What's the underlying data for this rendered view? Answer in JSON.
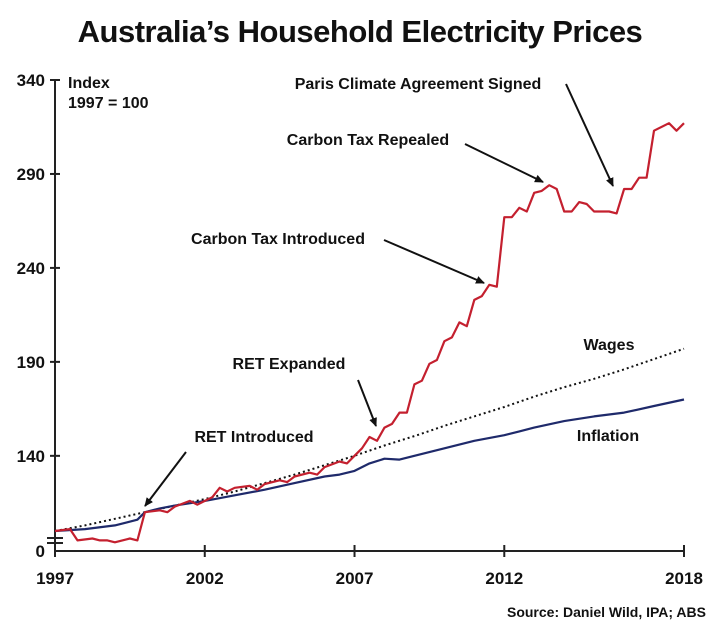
{
  "chart_data": {
    "type": "line",
    "title": "Australia’s Household Electricity Prices",
    "ylabel_lines": [
      "Index",
      "1997 = 100"
    ],
    "xlabel": "",
    "xlim": [
      1997,
      2018
    ],
    "ylim": [
      100,
      340
    ],
    "y_ticks": [
      340,
      290,
      240,
      190,
      140
    ],
    "y_zero_label": "0",
    "y_axis_broken": true,
    "x_ticks": [
      1997,
      2002,
      2007,
      2012,
      2018
    ],
    "grid": false,
    "source": "Source: Daniel Wild, IPA; ABS",
    "series": [
      {
        "name": "Electricity",
        "color": "#c4202f",
        "style": "solid",
        "points": [
          [
            1997.0,
            100
          ],
          [
            1997.5,
            101
          ],
          [
            1997.75,
            95
          ],
          [
            1998.25,
            96
          ],
          [
            1998.5,
            95
          ],
          [
            1998.75,
            95
          ],
          [
            1999.0,
            94
          ],
          [
            1999.5,
            96
          ],
          [
            1999.75,
            95
          ],
          [
            2000.0,
            110
          ],
          [
            2000.5,
            111
          ],
          [
            2000.75,
            110
          ],
          [
            2001.0,
            113
          ],
          [
            2001.5,
            116
          ],
          [
            2001.75,
            114
          ],
          [
            2002.0,
            116
          ],
          [
            2002.25,
            118
          ],
          [
            2002.5,
            123
          ],
          [
            2002.75,
            121
          ],
          [
            2003.0,
            123
          ],
          [
            2003.5,
            124
          ],
          [
            2003.75,
            122
          ],
          [
            2004.0,
            125
          ],
          [
            2004.5,
            127
          ],
          [
            2004.75,
            126
          ],
          [
            2005.0,
            129
          ],
          [
            2005.5,
            131
          ],
          [
            2005.75,
            130
          ],
          [
            2006.0,
            134
          ],
          [
            2006.5,
            137
          ],
          [
            2006.75,
            136
          ],
          [
            2007.0,
            140
          ],
          [
            2007.25,
            144
          ],
          [
            2007.5,
            150
          ],
          [
            2007.75,
            148
          ],
          [
            2008.0,
            155
          ],
          [
            2008.25,
            157
          ],
          [
            2008.5,
            163
          ],
          [
            2008.75,
            163
          ],
          [
            2009.0,
            178
          ],
          [
            2009.25,
            180
          ],
          [
            2009.5,
            189
          ],
          [
            2009.75,
            191
          ],
          [
            2010.0,
            201
          ],
          [
            2010.25,
            203
          ],
          [
            2010.5,
            211
          ],
          [
            2010.75,
            209
          ],
          [
            2011.0,
            223
          ],
          [
            2011.25,
            225
          ],
          [
            2011.5,
            231
          ],
          [
            2011.75,
            230
          ],
          [
            2012.0,
            267
          ],
          [
            2012.25,
            267
          ],
          [
            2012.5,
            272
          ],
          [
            2012.75,
            270
          ],
          [
            2013.0,
            280
          ],
          [
            2013.25,
            281
          ],
          [
            2013.5,
            284
          ],
          [
            2013.75,
            282
          ],
          [
            2014.0,
            270
          ],
          [
            2014.25,
            270
          ],
          [
            2014.5,
            275
          ],
          [
            2014.75,
            274
          ],
          [
            2015.0,
            270
          ],
          [
            2015.5,
            270
          ],
          [
            2015.75,
            269
          ],
          [
            2016.0,
            282
          ],
          [
            2016.25,
            282
          ],
          [
            2016.5,
            288
          ],
          [
            2016.75,
            288
          ],
          [
            2017.0,
            313
          ],
          [
            2017.5,
            317
          ],
          [
            2017.75,
            313
          ],
          [
            2018.0,
            317
          ]
        ]
      },
      {
        "name": "Wages",
        "color": "#111111",
        "style": "dotted",
        "points": [
          [
            1997,
            100
          ],
          [
            1998,
            103
          ],
          [
            1999,
            106.5
          ],
          [
            2000,
            110
          ],
          [
            2001,
            113.5
          ],
          [
            2002,
            117
          ],
          [
            2003,
            121
          ],
          [
            2004,
            125.5
          ],
          [
            2005,
            130
          ],
          [
            2006,
            135
          ],
          [
            2007,
            140
          ],
          [
            2008,
            145.5
          ],
          [
            2009,
            150.5
          ],
          [
            2010,
            156
          ],
          [
            2011,
            161
          ],
          [
            2012,
            166
          ],
          [
            2013,
            171.5
          ],
          [
            2014,
            176.5
          ],
          [
            2015,
            181
          ],
          [
            2016,
            186
          ],
          [
            2017,
            191.5
          ],
          [
            2018,
            197
          ]
        ]
      },
      {
        "name": "Inflation",
        "color": "#1f2a6b",
        "style": "solid",
        "points": [
          [
            1997,
            100
          ],
          [
            1998,
            101
          ],
          [
            1999,
            103
          ],
          [
            1999.75,
            106
          ],
          [
            2000.0,
            110
          ],
          [
            2000.5,
            112
          ],
          [
            2001,
            113.5
          ],
          [
            2002,
            116
          ],
          [
            2003,
            119
          ],
          [
            2004,
            122
          ],
          [
            2005,
            125.5
          ],
          [
            2006,
            129
          ],
          [
            2006.5,
            130
          ],
          [
            2007,
            132
          ],
          [
            2007.5,
            136
          ],
          [
            2008.0,
            138.5
          ],
          [
            2008.5,
            138
          ],
          [
            2009,
            140
          ],
          [
            2010,
            144
          ],
          [
            2011,
            148
          ],
          [
            2012,
            151
          ],
          [
            2012.5,
            153
          ],
          [
            2013,
            155
          ],
          [
            2014,
            158.5
          ],
          [
            2015,
            161
          ],
          [
            2016,
            163
          ],
          [
            2017,
            166.5
          ],
          [
            2018,
            170
          ]
        ]
      }
    ],
    "series_labels": [
      {
        "text": "Wages",
        "series": "Wages"
      },
      {
        "text": "Inflation",
        "series": "Inflation"
      }
    ],
    "annotations": [
      {
        "text": "RET Introduced",
        "target": [
          2000.0,
          110
        ]
      },
      {
        "text": "RET Expanded",
        "target": [
          2007.5,
          150
        ]
      },
      {
        "text": "Carbon Tax Introduced",
        "target": [
          2011.5,
          231
        ]
      },
      {
        "text": "Carbon Tax Repealed",
        "target": [
          2013.5,
          284
        ]
      },
      {
        "text": "Paris Climate Agreement Signed",
        "target": [
          2016.0,
          282
        ]
      }
    ]
  }
}
